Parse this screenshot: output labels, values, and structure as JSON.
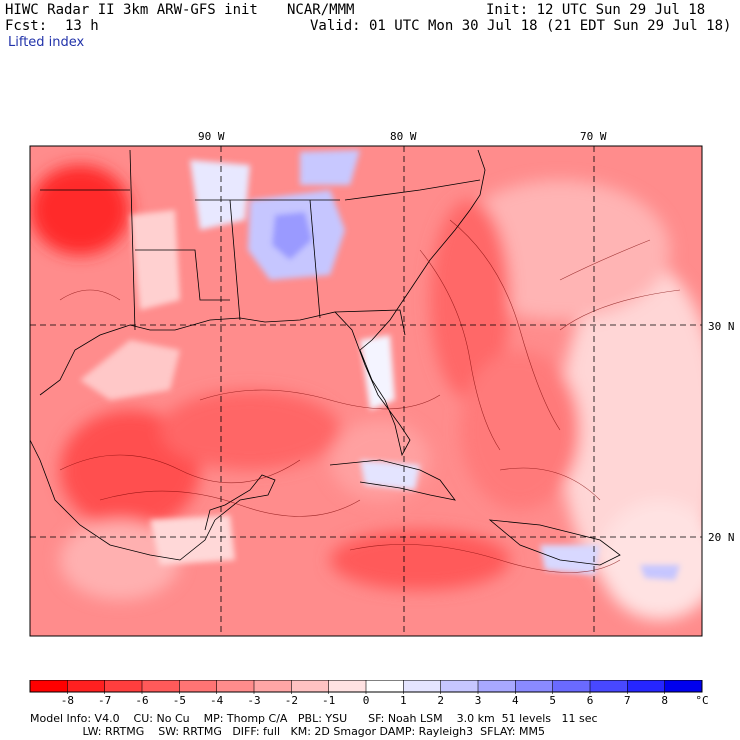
{
  "header": {
    "title": "HIWC Radar II 3km ARW-GFS init",
    "org": "NCAR/MMM",
    "init": "Init: 12 UTC Sun 29 Jul 18",
    "fcst_label": "Fcst:",
    "fcst_value": "13 h",
    "valid": "Valid: 01 UTC Mon 30 Jul 18 (21 EDT Sun 29 Jul 18)",
    "field": "Lifted index"
  },
  "map": {
    "lon_labels": [
      "90 W",
      "80 W",
      "70 W"
    ],
    "lat_labels": [
      "30 N",
      "20 N"
    ]
  },
  "colorbar": {
    "ticks": [
      "-8",
      "-7",
      "-6",
      "-5",
      "-4",
      "-3",
      "-2",
      "-1",
      "0",
      "1",
      "2",
      "3",
      "4",
      "5",
      "6",
      "7",
      "8"
    ],
    "unit": "°C",
    "colors": [
      "#ff0000",
      "#ff2020",
      "#ff3e3e",
      "#ff5a5a",
      "#ff7474",
      "#ff8c8c",
      "#ffa6a6",
      "#ffc2c2",
      "#ffe2e2",
      "#ffffff",
      "#e4e4ff",
      "#c6c6ff",
      "#a8a8ff",
      "#8a8aff",
      "#6a6aff",
      "#4848ff",
      "#2626ff",
      "#0000ee"
    ]
  },
  "footer": {
    "line1": "Model Info: V4.0    CU: No Cu    MP: Thomp C/A   PBL: YSU      SF: Noah LSM    3.0 km  51 levels   11 sec",
    "line2": "               LW: RRTMG    SW: RRTMG   DIFF: full   KM: 2D Smagor DAMP: Rayleigh3  SFLAY: MM5"
  }
}
